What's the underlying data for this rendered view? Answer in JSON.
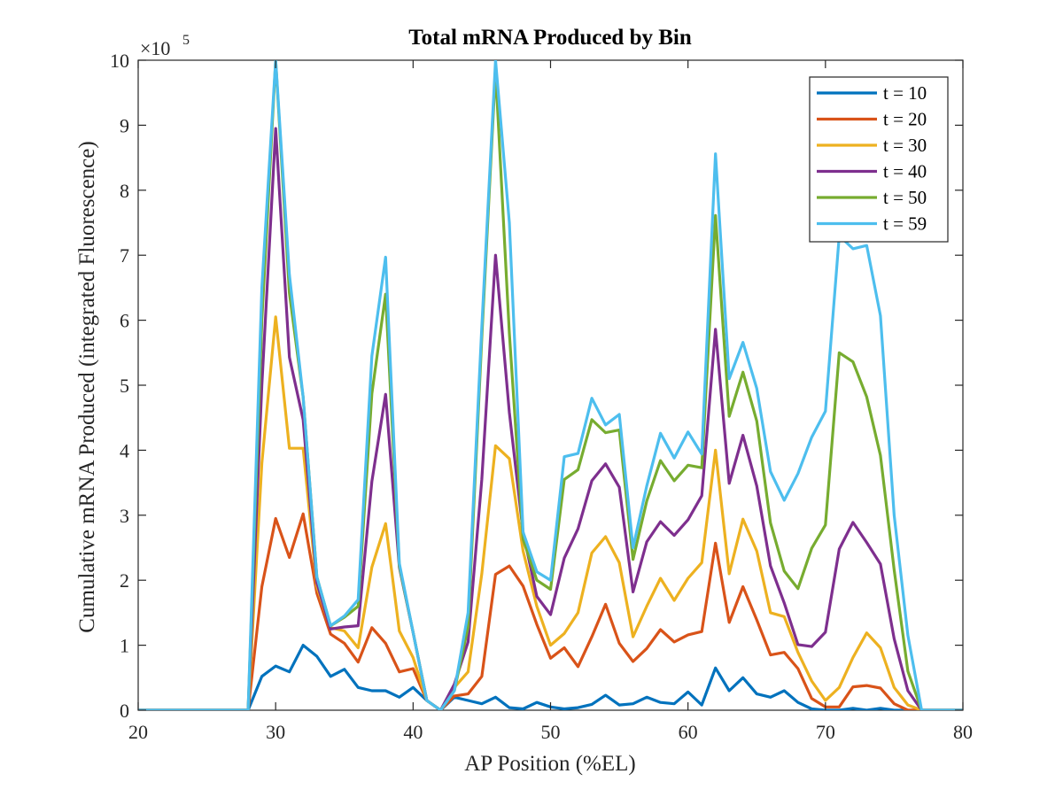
{
  "chart_data": {
    "type": "line",
    "title": "Total mRNA Produced by Bin",
    "xlabel": "AP Position (%EL)",
    "ylabel": "Cumulative mRNA Produced (integrated Fluorescence)",
    "y_exponent_label": "×10",
    "y_exponent_power": "5",
    "xlim": [
      20,
      80
    ],
    "ylim": [
      0,
      10
    ],
    "y_scale_factor": 100000,
    "xticks": [
      20,
      30,
      40,
      50,
      60,
      70,
      80
    ],
    "yticks": [
      0,
      1,
      2,
      3,
      4,
      5,
      6,
      7,
      8,
      9,
      10
    ],
    "xtick_labels": [
      "20",
      "30",
      "40",
      "50",
      "60",
      "70",
      "80"
    ],
    "ytick_labels": [
      "0",
      "1",
      "2",
      "3",
      "4",
      "5",
      "6",
      "7",
      "8",
      "9",
      "10"
    ],
    "grid": false,
    "legend_position": "top-right",
    "x": [
      20,
      21,
      22,
      23,
      24,
      25,
      26,
      27,
      28,
      29,
      30,
      31,
      32,
      33,
      34,
      35,
      36,
      37,
      38,
      39,
      40,
      41,
      42,
      43,
      44,
      45,
      46,
      47,
      48,
      49,
      50,
      51,
      52,
      53,
      54,
      55,
      56,
      57,
      58,
      59,
      60,
      61,
      62,
      63,
      64,
      65,
      66,
      67,
      68,
      69,
      70,
      71,
      72,
      73,
      74,
      75,
      76,
      77,
      78,
      79,
      80
    ],
    "series": [
      {
        "name": "t = 10",
        "color": "#0072BD",
        "values": [
          0,
          0,
          0,
          0,
          0,
          0,
          0,
          0,
          0,
          0.52,
          0.68,
          0.59,
          1.0,
          0.83,
          0.52,
          0.63,
          0.35,
          0.3,
          0.3,
          0.2,
          0.35,
          0.15,
          0,
          0.2,
          0.15,
          0.1,
          0.2,
          0.04,
          0.02,
          0.12,
          0.05,
          0.02,
          0.04,
          0.09,
          0.23,
          0.08,
          0.1,
          0.2,
          0.12,
          0.1,
          0.28,
          0.08,
          0.65,
          0.3,
          0.5,
          0.25,
          0.2,
          0.3,
          0.12,
          0.02,
          0,
          0,
          0.03,
          0,
          0.03,
          0,
          0,
          0,
          0,
          0,
          0
        ]
      },
      {
        "name": "t = 20",
        "color": "#D95319",
        "values": [
          0,
          0,
          0,
          0,
          0,
          0,
          0,
          0,
          0,
          1.9,
          2.95,
          2.35,
          3.02,
          1.8,
          1.17,
          1.03,
          0.74,
          1.27,
          1.03,
          0.59,
          0.64,
          0.15,
          0,
          0.22,
          0.25,
          0.52,
          2.09,
          2.22,
          1.91,
          1.32,
          0.8,
          0.96,
          0.67,
          1.13,
          1.63,
          1.03,
          0.75,
          0.95,
          1.24,
          1.05,
          1.16,
          1.21,
          2.57,
          1.35,
          1.9,
          1.39,
          0.85,
          0.89,
          0.64,
          0.18,
          0.05,
          0.05,
          0.36,
          0.38,
          0.34,
          0.1,
          0,
          0,
          0,
          0,
          0
        ]
      },
      {
        "name": "t = 30",
        "color": "#EDB120",
        "values": [
          0,
          0,
          0,
          0,
          0,
          0,
          0,
          0,
          0,
          3.8,
          6.05,
          4.03,
          4.03,
          1.9,
          1.27,
          1.22,
          0.96,
          2.2,
          2.87,
          1.22,
          0.81,
          0.15,
          0,
          0.35,
          0.59,
          2.1,
          4.07,
          3.87,
          2.45,
          1.6,
          1.0,
          1.18,
          1.5,
          2.42,
          2.67,
          2.27,
          1.13,
          1.6,
          2.03,
          1.69,
          2.03,
          2.27,
          4.0,
          2.1,
          2.94,
          2.45,
          1.5,
          1.44,
          0.89,
          0.45,
          0.15,
          0.35,
          0.81,
          1.19,
          0.96,
          0.35,
          0.08,
          0,
          0,
          0,
          0
        ]
      },
      {
        "name": "t = 40",
        "color": "#7E2F8E",
        "values": [
          0,
          0,
          0,
          0,
          0,
          0,
          0,
          0,
          0,
          5.0,
          8.95,
          5.43,
          4.47,
          1.96,
          1.25,
          1.28,
          1.3,
          3.52,
          4.86,
          2.2,
          1.2,
          0.15,
          0,
          0.4,
          1.05,
          3.55,
          7.0,
          4.58,
          2.74,
          1.75,
          1.47,
          2.34,
          2.79,
          3.53,
          3.79,
          3.43,
          1.82,
          2.59,
          2.9,
          2.69,
          2.93,
          3.3,
          5.86,
          3.49,
          4.23,
          3.45,
          2.22,
          1.65,
          1.01,
          0.98,
          1.2,
          2.48,
          2.89,
          2.58,
          2.25,
          1.1,
          0.3,
          0,
          0,
          0,
          0
        ]
      },
      {
        "name": "t = 50",
        "color": "#77AC30",
        "values": [
          0,
          0,
          0,
          0,
          0,
          0,
          0,
          0,
          0,
          6.0,
          10.0,
          6.42,
          4.82,
          2.05,
          1.3,
          1.43,
          1.6,
          4.87,
          6.4,
          2.22,
          1.2,
          0.15,
          0,
          0.3,
          1.28,
          5.73,
          9.85,
          5.8,
          2.63,
          2.0,
          1.86,
          3.55,
          3.7,
          4.47,
          4.27,
          4.31,
          2.32,
          3.22,
          3.84,
          3.53,
          3.77,
          3.73,
          7.61,
          4.52,
          5.2,
          4.45,
          2.88,
          2.14,
          1.87,
          2.49,
          2.85,
          5.5,
          5.36,
          4.82,
          3.92,
          2.16,
          0.6,
          0,
          0,
          0,
          0
        ]
      },
      {
        "name": "t = 59",
        "color": "#4DBEEE",
        "values": [
          0,
          0,
          0,
          0,
          0,
          0,
          0,
          0,
          0,
          6.5,
          10.0,
          6.7,
          4.82,
          2.05,
          1.3,
          1.45,
          1.7,
          5.45,
          6.97,
          2.26,
          1.2,
          0.15,
          0,
          0.3,
          1.5,
          5.9,
          10.0,
          7.5,
          2.74,
          2.13,
          2.0,
          3.9,
          3.95,
          4.8,
          4.39,
          4.55,
          2.5,
          3.45,
          4.26,
          3.88,
          4.28,
          3.94,
          8.56,
          5.1,
          5.66,
          4.95,
          3.67,
          3.23,
          3.64,
          4.2,
          4.6,
          7.3,
          7.1,
          7.15,
          6.07,
          3.0,
          1.15,
          0,
          0,
          0,
          0
        ]
      }
    ]
  }
}
